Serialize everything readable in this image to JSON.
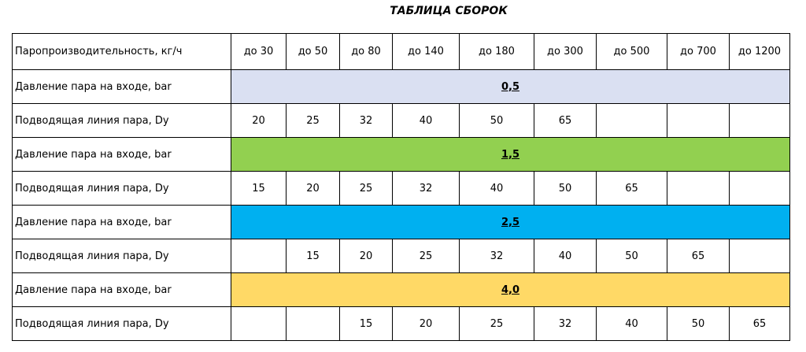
{
  "title": "ТАБЛИЦА СБОРОК",
  "table": {
    "header": [
      "Паропроизводительность, кг/ч",
      "до 30",
      "до 50",
      "до 80",
      "до 140",
      "до 180",
      "до 300",
      "до 500",
      "до 700",
      "до 1200"
    ],
    "rows": [
      {
        "label": "Давление пара на входе, bar",
        "value": "0,5",
        "color": "#dae0f2"
      },
      {
        "label": "Подводящая линия пара, Dy",
        "cells": [
          20,
          25,
          32,
          40,
          50,
          65,
          null,
          null,
          null
        ]
      },
      {
        "label": "Давление пара на входе, bar",
        "value": "1,5",
        "color": "#92d050"
      },
      {
        "label": "Подводящая линия пара, Dy",
        "cells": [
          15,
          20,
          25,
          32,
          40,
          50,
          65,
          null,
          null
        ]
      },
      {
        "label": "Давление пара на входе, bar",
        "value": "2,5",
        "color": "#00b0f0"
      },
      {
        "label": "Подводящая линия пара, Dy",
        "cells": [
          null,
          15,
          20,
          25,
          32,
          40,
          50,
          65,
          null
        ]
      },
      {
        "label": "Давление пара на входе, bar",
        "value": "4,0",
        "color": "#ffd966"
      },
      {
        "label": "Подводящая линия пара, Dy",
        "cells": [
          null,
          null,
          15,
          20,
          25,
          32,
          40,
          50,
          65
        ]
      }
    ]
  }
}
